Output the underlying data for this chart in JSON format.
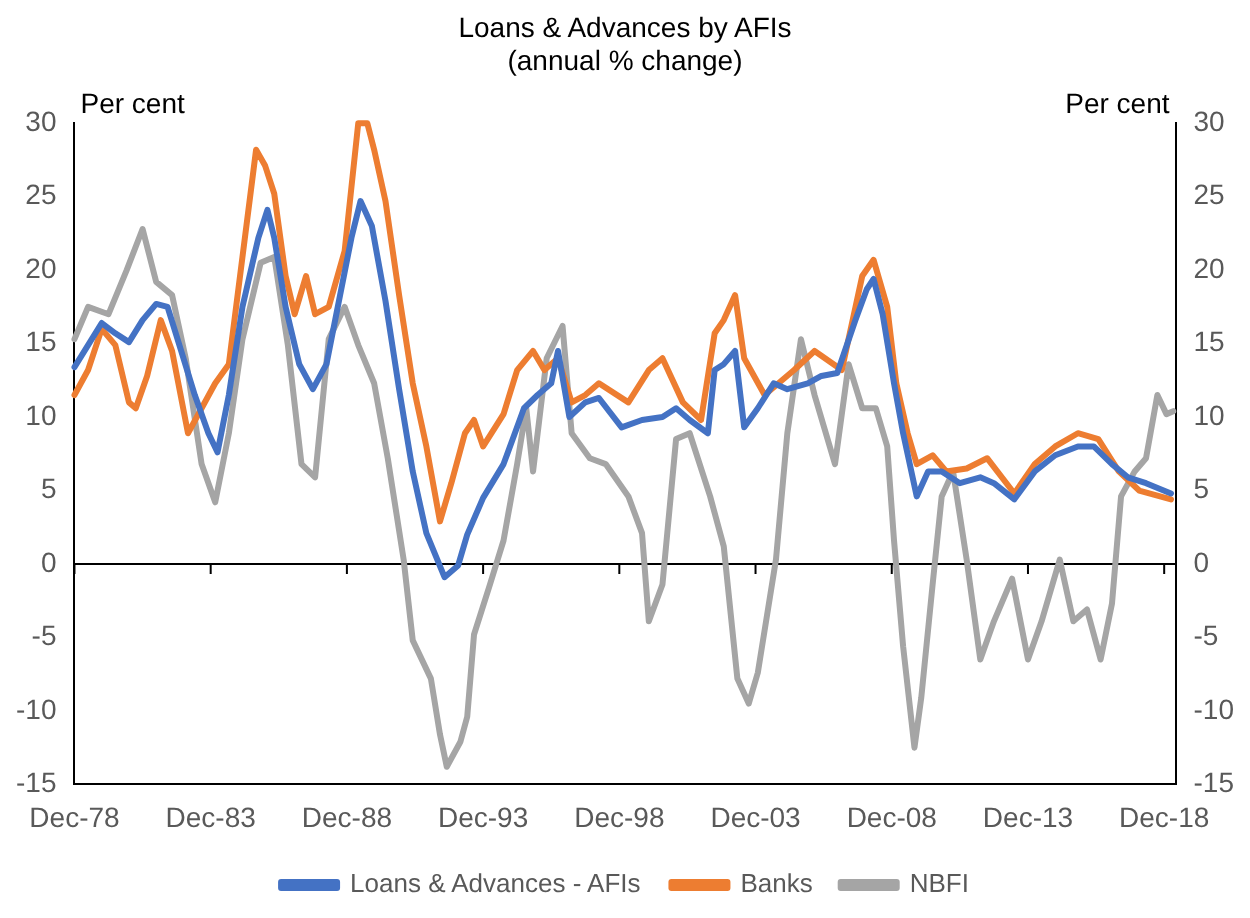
{
  "chart_data": {
    "type": "line",
    "title": "Loans & Advances by AFIs",
    "subtitle": "(annual % change)",
    "ylabel": "Per cent",
    "y2label": "Per cent",
    "xlim": [
      "1978-12",
      "2019-05"
    ],
    "xticks": [
      {
        "value": "1978-12",
        "label": "Dec-78"
      },
      {
        "value": "1983-12",
        "label": "Dec-83"
      },
      {
        "value": "1988-12",
        "label": "Dec-88"
      },
      {
        "value": "1993-12",
        "label": "Dec-93"
      },
      {
        "value": "1998-12",
        "label": "Dec-98"
      },
      {
        "value": "2003-12",
        "label": "Dec-03"
      },
      {
        "value": "2008-12",
        "label": "Dec-08"
      },
      {
        "value": "2013-12",
        "label": "Dec-13"
      },
      {
        "value": "2018-12",
        "label": "Dec-18"
      }
    ],
    "ylim": [
      -15,
      30
    ],
    "yticks": [
      -15,
      -10,
      -5,
      0,
      5,
      10,
      15,
      20,
      25,
      30
    ],
    "y2lim": [
      -15,
      30
    ],
    "y2ticks": [
      -15,
      -10,
      -5,
      0,
      5,
      10,
      15,
      20,
      25,
      30
    ],
    "ref_lines": [
      {
        "axis": "y",
        "value": 0,
        "color": "#000000"
      }
    ],
    "grid": false,
    "legend": "bottom",
    "marker": "none",
    "line_style": "solid",
    "series": [
      {
        "name": "Loans & Advances - AFIs",
        "color": "#4472c4",
        "x": [
          "1978-12",
          "1979-06",
          "1979-12",
          "1980-06",
          "1980-12",
          "1981-06",
          "1981-12",
          "1982-05",
          "1982-11",
          "1983-05",
          "1983-11",
          "1984-03",
          "1984-08",
          "1985-02",
          "1985-09",
          "1986-01",
          "1986-04",
          "1986-09",
          "1987-03",
          "1987-09",
          "1988-03",
          "1988-09",
          "1989-02",
          "1989-06",
          "1989-11",
          "1990-05",
          "1990-11",
          "1991-05",
          "1991-11",
          "1992-07",
          "1993-01",
          "1993-05",
          "1993-12",
          "1994-09",
          "1995-06",
          "1995-12",
          "1996-06",
          "1996-09",
          "1997-02",
          "1997-09",
          "1998-03",
          "1999-01",
          "1999-10",
          "2000-07",
          "2001-01",
          "2001-07",
          "2002-03",
          "2002-06",
          "2002-10",
          "2003-03",
          "2003-07",
          "2004-01",
          "2004-08",
          "2005-02",
          "2005-11",
          "2006-05",
          "2006-12",
          "2007-08",
          "2008-01",
          "2008-04",
          "2008-08",
          "2009-01",
          "2009-05",
          "2009-11",
          "2010-04",
          "2010-10",
          "2011-06",
          "2012-03",
          "2012-09",
          "2013-06",
          "2014-03",
          "2014-12",
          "2015-10",
          "2016-05",
          "2017-01",
          "2017-08",
          "2018-04",
          "2019-03"
        ],
        "values": [
          13.4,
          14.9,
          16.4,
          15.7,
          15.1,
          16.6,
          17.7,
          17.5,
          14.5,
          11.5,
          8.9,
          7.6,
          11.5,
          17.5,
          22.2,
          24.1,
          22.2,
          17.5,
          13.6,
          11.9,
          13.6,
          18.3,
          22.2,
          24.7,
          23.0,
          17.9,
          11.9,
          6.3,
          2.1,
          -0.9,
          -0.1,
          2.0,
          4.5,
          6.8,
          10.6,
          11.5,
          12.3,
          14.5,
          10.0,
          11.0,
          11.3,
          9.3,
          9.8,
          10.0,
          10.6,
          9.8,
          8.9,
          13.2,
          13.6,
          14.5,
          9.3,
          10.6,
          12.3,
          11.9,
          12.3,
          12.8,
          13.0,
          16.6,
          18.7,
          19.4,
          17.0,
          12.3,
          8.9,
          4.6,
          6.3,
          6.3,
          5.5,
          5.9,
          5.5,
          4.4,
          6.3,
          7.4,
          8.0,
          8.0,
          6.8,
          5.9,
          5.5,
          4.8
        ]
      },
      {
        "name": "Banks",
        "color": "#ed7d31",
        "x": [
          "1978-12",
          "1979-06",
          "1979-12",
          "1980-06",
          "1980-12",
          "1981-03",
          "1981-08",
          "1982-02",
          "1982-07",
          "1983-02",
          "1983-08",
          "1984-02",
          "1984-08",
          "1985-02",
          "1985-08",
          "1985-12",
          "1986-04",
          "1986-09",
          "1987-01",
          "1987-06",
          "1987-10",
          "1988-04",
          "1988-11",
          "1989-05",
          "1989-09",
          "1989-12",
          "1990-05",
          "1990-11",
          "1991-05",
          "1991-11",
          "1992-05",
          "1992-10",
          "1993-04",
          "1993-08",
          "1993-12",
          "1994-09",
          "1995-03",
          "1995-10",
          "1996-03",
          "1996-09",
          "1997-03",
          "1997-09",
          "1998-03",
          "1999-04",
          "2000-01",
          "2000-07",
          "2001-04",
          "2001-12",
          "2002-06",
          "2002-10",
          "2003-03",
          "2003-07",
          "2004-04",
          "2005-05",
          "2006-02",
          "2007-02",
          "2007-11",
          "2008-04",
          "2008-10",
          "2009-02",
          "2009-07",
          "2009-11",
          "2010-06",
          "2010-12",
          "2011-09",
          "2012-06",
          "2013-06",
          "2014-03",
          "2014-12",
          "2015-10",
          "2016-07",
          "2017-04",
          "2018-01",
          "2019-03"
        ],
        "values": [
          11.5,
          13.2,
          16.0,
          14.9,
          11.0,
          10.6,
          12.8,
          16.6,
          14.5,
          8.9,
          10.6,
          12.3,
          13.6,
          20.9,
          28.2,
          27.1,
          25.2,
          19.6,
          17.0,
          19.6,
          17.0,
          17.5,
          21.3,
          30,
          30,
          28.2,
          24.7,
          18.3,
          12.3,
          8.0,
          2.9,
          5.5,
          8.9,
          9.8,
          8.0,
          10.2,
          13.2,
          14.5,
          13.2,
          14.0,
          11.0,
          11.5,
          12.3,
          11.0,
          13.2,
          14.0,
          11.0,
          9.8,
          15.7,
          16.6,
          18.3,
          14.0,
          11.5,
          13.2,
          14.5,
          13.2,
          19.6,
          20.7,
          17.5,
          12.3,
          8.9,
          6.8,
          7.4,
          6.3,
          6.5,
          7.2,
          4.8,
          6.8,
          8.0,
          8.9,
          8.5,
          6.3,
          5.0,
          4.4
        ]
      },
      {
        "name": "NBFI",
        "color": "#a5a5a5",
        "x": [
          "1978-12",
          "1979-06",
          "1980-03",
          "1980-11",
          "1981-06",
          "1981-12",
          "1982-07",
          "1983-01",
          "1983-08",
          "1984-02",
          "1984-08",
          "1985-02",
          "1985-10",
          "1986-04",
          "1986-10",
          "1987-04",
          "1987-10",
          "1988-04",
          "1988-11",
          "1989-05",
          "1989-12",
          "1990-06",
          "1991-01",
          "1991-05",
          "1992-01",
          "1992-05",
          "1992-08",
          "1993-02",
          "1993-05",
          "1993-08",
          "1994-03",
          "1994-09",
          "1995-03",
          "1995-07",
          "1995-10",
          "1996-04",
          "1996-11",
          "1997-03",
          "1997-11",
          "1998-06",
          "1999-04",
          "1999-10",
          "2000-01",
          "2000-07",
          "2001-01",
          "2001-07",
          "2002-04",
          "2002-10",
          "2003-04",
          "2003-09",
          "2004-01",
          "2004-09",
          "2005-02",
          "2005-08",
          "2006-02",
          "2006-11",
          "2007-05",
          "2007-11",
          "2008-05",
          "2008-10",
          "2009-01",
          "2009-05",
          "2009-10",
          "2010-01",
          "2010-06",
          "2010-10",
          "2011-03",
          "2011-09",
          "2012-03",
          "2012-09",
          "2013-05",
          "2013-12",
          "2014-06",
          "2015-02",
          "2015-08",
          "2016-02",
          "2016-08",
          "2017-01",
          "2017-05",
          "2017-11",
          "2018-04",
          "2018-09",
          "2019-01",
          "2019-04"
        ],
        "values": [
          15.3,
          17.5,
          17.0,
          20.0,
          22.8,
          19.2,
          18.3,
          14.0,
          6.8,
          4.2,
          8.9,
          15.3,
          20.5,
          20.9,
          14.9,
          6.8,
          5.9,
          15.3,
          17.5,
          14.9,
          12.3,
          7.2,
          0.3,
          -5.2,
          -7.8,
          -11.6,
          -13.8,
          -12.1,
          -10.4,
          -4.8,
          -1.4,
          1.6,
          6.8,
          10.6,
          6.3,
          14.0,
          16.2,
          8.9,
          7.2,
          6.8,
          4.6,
          2.1,
          -3.9,
          -1.4,
          8.5,
          8.9,
          4.6,
          1.2,
          -7.8,
          -9.5,
          -7.4,
          0.3,
          8.9,
          15.3,
          11.5,
          6.8,
          13.6,
          10.6,
          10.6,
          8.0,
          1.6,
          -5.6,
          -12.5,
          -9.1,
          -1.4,
          4.6,
          6.3,
          0.3,
          -6.5,
          -3.9,
          -1.0,
          -6.5,
          -3.9,
          0.3,
          -3.9,
          -3.1,
          -6.5,
          -2.7,
          4.6,
          6.3,
          7.2,
          11.5,
          10.2,
          10.4
        ]
      }
    ]
  }
}
